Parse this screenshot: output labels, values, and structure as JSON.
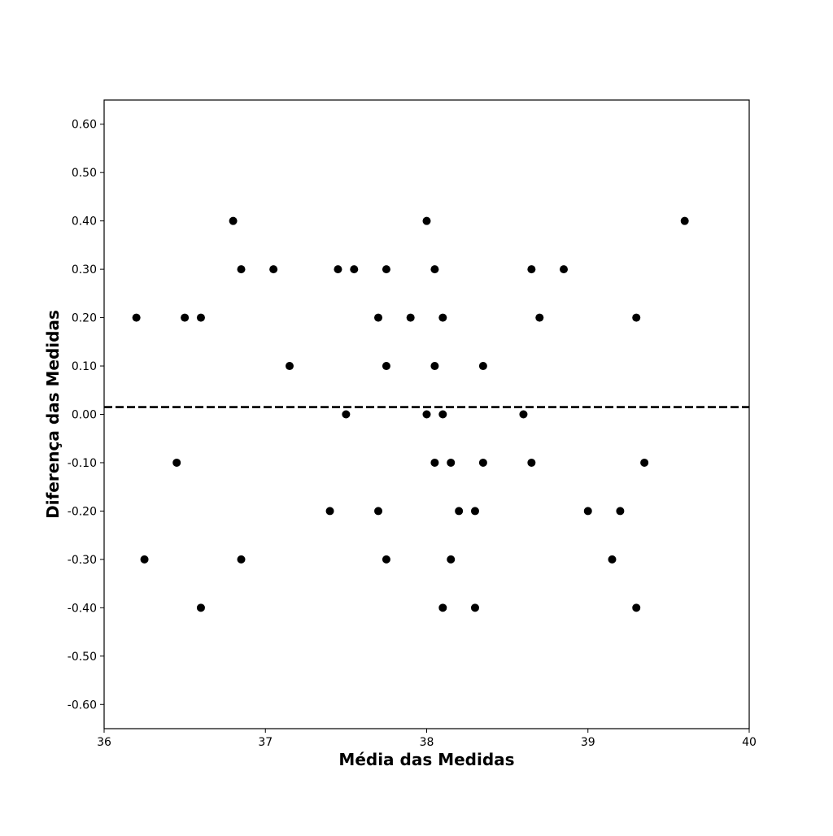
{
  "chart_data": {
    "type": "scatter",
    "title": "",
    "xlabel": "Média das Medidas",
    "ylabel": "Diferença das Medidas",
    "xlim": [
      36,
      40
    ],
    "ylim": [
      -0.65,
      0.65
    ],
    "x_ticks": [
      36,
      37,
      38,
      39,
      40
    ],
    "x_tick_labels": [
      "36",
      "37",
      "38",
      "39",
      "40"
    ],
    "y_ticks": [
      0.6,
      0.5,
      0.4,
      0.3,
      0.2,
      0.1,
      0.0,
      -0.1,
      -0.2,
      -0.3,
      -0.4,
      -0.5,
      -0.6
    ],
    "y_tick_labels": [
      "0.60",
      "0.50",
      "0.40",
      "0.30",
      "0.20",
      "0.10",
      "0.00",
      "-0.10",
      "-0.20",
      "-0.30",
      "-0.40",
      "-0.50",
      "-0.60"
    ],
    "grid": false,
    "legend": false,
    "marker_color": "#000000",
    "mean_line": {
      "y": 0.015,
      "style": "dashed",
      "color": "#000000"
    },
    "points": [
      {
        "x": 36.2,
        "y": 0.2
      },
      {
        "x": 36.25,
        "y": -0.3
      },
      {
        "x": 36.45,
        "y": -0.1
      },
      {
        "x": 36.5,
        "y": 0.2
      },
      {
        "x": 36.6,
        "y": 0.2
      },
      {
        "x": 36.6,
        "y": -0.4
      },
      {
        "x": 36.8,
        "y": 0.4
      },
      {
        "x": 36.85,
        "y": 0.3
      },
      {
        "x": 36.85,
        "y": -0.3
      },
      {
        "x": 37.05,
        "y": 0.3
      },
      {
        "x": 37.15,
        "y": 0.1
      },
      {
        "x": 37.4,
        "y": -0.2
      },
      {
        "x": 37.45,
        "y": 0.3
      },
      {
        "x": 37.5,
        "y": 0.0
      },
      {
        "x": 37.55,
        "y": 0.3
      },
      {
        "x": 37.7,
        "y": 0.2
      },
      {
        "x": 37.7,
        "y": -0.2
      },
      {
        "x": 37.75,
        "y": 0.3
      },
      {
        "x": 37.75,
        "y": 0.1
      },
      {
        "x": 37.75,
        "y": -0.3
      },
      {
        "x": 37.9,
        "y": 0.2
      },
      {
        "x": 38.0,
        "y": 0.4
      },
      {
        "x": 38.0,
        "y": 0.0
      },
      {
        "x": 38.05,
        "y": 0.3
      },
      {
        "x": 38.05,
        "y": 0.1
      },
      {
        "x": 38.05,
        "y": -0.1
      },
      {
        "x": 38.1,
        "y": 0.2
      },
      {
        "x": 38.1,
        "y": 0.0
      },
      {
        "x": 38.1,
        "y": -0.4
      },
      {
        "x": 38.15,
        "y": -0.1
      },
      {
        "x": 38.15,
        "y": -0.3
      },
      {
        "x": 38.2,
        "y": -0.2
      },
      {
        "x": 38.3,
        "y": -0.2
      },
      {
        "x": 38.3,
        "y": -0.4
      },
      {
        "x": 38.35,
        "y": 0.1
      },
      {
        "x": 38.35,
        "y": -0.1
      },
      {
        "x": 38.6,
        "y": 0.0
      },
      {
        "x": 38.65,
        "y": 0.3
      },
      {
        "x": 38.65,
        "y": -0.1
      },
      {
        "x": 38.7,
        "y": 0.2
      },
      {
        "x": 38.85,
        "y": 0.3
      },
      {
        "x": 39.0,
        "y": -0.2
      },
      {
        "x": 39.15,
        "y": -0.3
      },
      {
        "x": 39.2,
        "y": -0.2
      },
      {
        "x": 39.3,
        "y": 0.2
      },
      {
        "x": 39.3,
        "y": -0.4
      },
      {
        "x": 39.35,
        "y": -0.1
      },
      {
        "x": 39.6,
        "y": 0.4
      }
    ]
  }
}
